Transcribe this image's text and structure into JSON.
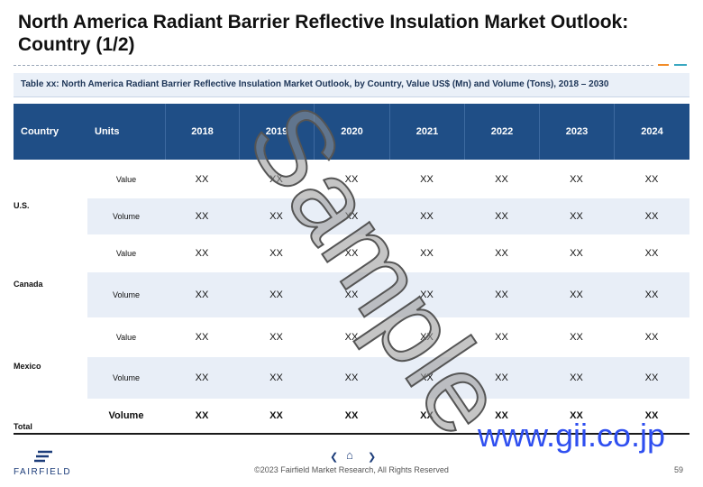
{
  "header": {
    "title": "North America Radiant Barrier Reflective Insulation Market Outlook: Country (1/2)",
    "subtitle": "Table xx: North America Radiant Barrier Reflective Insulation Market Outlook, by Country, Value US$ (Mn) and Volume (Tons), 2018 – 2030"
  },
  "table": {
    "columns": [
      "Country",
      "Units",
      "2018",
      "2019",
      "2020",
      "2021",
      "2022",
      "2023",
      "2024"
    ],
    "groups": [
      {
        "country": "U.S.",
        "rows": [
          {
            "unit": "Value",
            "cells": [
              "XX",
              "XX",
              "XX",
              "XX",
              "XX",
              "XX",
              "XX"
            ]
          },
          {
            "unit": "Volume",
            "cells": [
              "XX",
              "XX",
              "XX",
              "XX",
              "XX",
              "XX",
              "XX"
            ]
          }
        ]
      },
      {
        "country": "Canada",
        "rows": [
          {
            "unit": "Value",
            "cells": [
              "XX",
              "XX",
              "XX",
              "XX",
              "XX",
              "XX",
              "XX"
            ]
          },
          {
            "unit": "Volume",
            "cells": [
              "XX",
              "XX",
              "XX",
              "XX",
              "XX",
              "XX",
              "XX"
            ]
          }
        ]
      },
      {
        "country": "Mexico",
        "rows": [
          {
            "unit": "Value",
            "cells": [
              "XX",
              "XX",
              "XX",
              "XX",
              "XX",
              "XX",
              "XX"
            ]
          },
          {
            "unit": "Volume",
            "cells": [
              "XX",
              "XX",
              "XX",
              "XX",
              "XX",
              "XX",
              "XX"
            ]
          }
        ]
      }
    ],
    "total": {
      "country": "Total",
      "unit": "Volume",
      "cells": [
        "XX",
        "XX",
        "XX",
        "XX",
        "XX",
        "XX",
        "XX"
      ]
    }
  },
  "watermark": {
    "sample": "Sample",
    "site": "www.gii.co.jp"
  },
  "footer": {
    "logo": "FAIRFIELD",
    "nav_prev": "❮",
    "nav_home": "⌂",
    "nav_next": "❯",
    "copyright": "©2023 Fairfield Market Research, All Rights Reserved",
    "page": "59"
  }
}
